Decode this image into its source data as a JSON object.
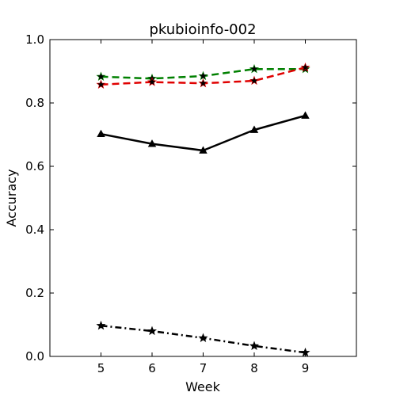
{
  "chart_data": {
    "type": "line",
    "title": "pkubioinfo-002",
    "xlabel": "Week",
    "ylabel": "Accuracy",
    "xlim": [
      4,
      10
    ],
    "ylim": [
      0.0,
      1.0
    ],
    "x": [
      5,
      6,
      7,
      8,
      9
    ],
    "x_ticks": [
      "5",
      "6",
      "7",
      "8",
      "9"
    ],
    "y_ticks": [
      "0.0",
      "0.2",
      "0.4",
      "0.6",
      "0.8",
      "1.0"
    ],
    "y_tick_values": [
      0.0,
      0.2,
      0.4,
      0.6,
      0.8,
      1.0
    ],
    "grid": false,
    "legend": "none",
    "series": [
      {
        "color": "#008000",
        "line_style": "dashed",
        "marker": "star",
        "values": [
          0.883,
          0.877,
          0.885,
          0.907,
          0.907
        ]
      },
      {
        "color": "#e00000",
        "line_style": "dashed",
        "marker": "star",
        "values": [
          0.858,
          0.866,
          0.862,
          0.87,
          0.912
        ]
      },
      {
        "color": "#000000",
        "line_style": "solid",
        "marker": "triangle",
        "values": [
          0.702,
          0.671,
          0.65,
          0.715,
          0.76
        ]
      },
      {
        "color": "#000000",
        "line_style": "dashdot",
        "marker": "star",
        "values": [
          0.097,
          0.08,
          0.058,
          0.033,
          0.012
        ]
      }
    ]
  }
}
